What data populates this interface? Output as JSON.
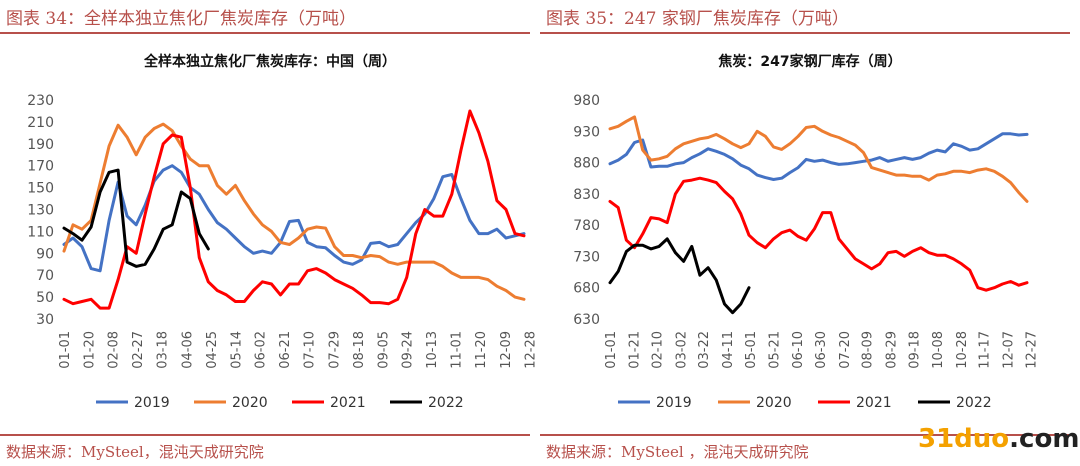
{
  "figures": [
    {
      "caption": "图表 34：全样本独立焦化厂焦炭库存（万吨）",
      "source": "数据来源：MySteel，混沌天成研究院"
    },
    {
      "caption": "图表 35：247 家钢厂焦炭库存（万吨）",
      "source": "数据来源：MySteel ，混沌天成研究院"
    }
  ],
  "watermark": {
    "part1": "31duo",
    "part2": ".com"
  },
  "chart_data": [
    {
      "type": "line",
      "title": "全样本独立焦化厂焦炭库存：中国（周）",
      "xlabel": "",
      "ylabel": "",
      "ylim": [
        30,
        230
      ],
      "yticks": [
        30,
        50,
        70,
        90,
        110,
        130,
        150,
        170,
        190,
        210,
        230
      ],
      "xlim": [
        1,
        52
      ],
      "categories": [
        "01-01",
        "01-20",
        "02-08",
        "02-27",
        "03-18",
        "04-06",
        "04-25",
        "05-14",
        "06-02",
        "06-21",
        "07-10",
        "07-29",
        "08-18",
        "09-05",
        "09-24",
        "10-13",
        "11-01",
        "11-20",
        "12-09",
        "12-28"
      ],
      "category_week": [
        1,
        3.7,
        6.4,
        9.1,
        11.8,
        14.6,
        17.3,
        20,
        22.7,
        25.4,
        28.1,
        30.9,
        33.6,
        36.3,
        39,
        41.7,
        44.4,
        47.1,
        49.9,
        52.6
      ],
      "grid": false,
      "legend_position": "bottom",
      "series": [
        {
          "name": "2019",
          "color": "#4472c4",
          "x": [
            1,
            2,
            3,
            4,
            5,
            6,
            7,
            8,
            9,
            10,
            11,
            12,
            13,
            14,
            15,
            16,
            17,
            18,
            19,
            20,
            21,
            22,
            23,
            24,
            25,
            26,
            27,
            28,
            29,
            30,
            31,
            32,
            33,
            34,
            35,
            36,
            37,
            38,
            39,
            40,
            41,
            42,
            43,
            44,
            45,
            46,
            47,
            48,
            49,
            50,
            51,
            52
          ],
          "values": [
            98,
            104,
            96,
            76,
            74,
            120,
            155,
            124,
            116,
            134,
            156,
            166,
            170,
            164,
            150,
            144,
            130,
            118,
            112,
            104,
            96,
            90,
            92,
            90,
            100,
            119,
            120,
            100,
            96,
            95,
            88,
            82,
            80,
            84,
            99,
            100,
            96,
            98,
            108,
            118,
            126,
            140,
            160,
            162,
            140,
            120,
            108,
            108,
            112,
            104,
            106,
            108
          ]
        },
        {
          "name": "2020",
          "color": "#ed7d31",
          "x": [
            1,
            2,
            3,
            4,
            5,
            6,
            7,
            8,
            9,
            10,
            11,
            12,
            13,
            14,
            15,
            16,
            17,
            18,
            19,
            20,
            21,
            22,
            23,
            24,
            25,
            26,
            27,
            28,
            29,
            30,
            31,
            32,
            33,
            34,
            35,
            36,
            37,
            38,
            39,
            40,
            41,
            42,
            43,
            44,
            45,
            46,
            47,
            48,
            49,
            50,
            51,
            52
          ],
          "values": [
            92,
            116,
            112,
            120,
            154,
            188,
            207,
            196,
            180,
            196,
            204,
            208,
            202,
            188,
            176,
            170,
            170,
            152,
            144,
            152,
            138,
            126,
            116,
            110,
            100,
            98,
            104,
            112,
            114,
            113,
            96,
            88,
            88,
            86,
            88,
            87,
            82,
            80,
            82,
            82,
            82,
            82,
            78,
            72,
            68,
            68,
            68,
            66,
            60,
            56,
            50,
            48
          ]
        },
        {
          "name": "2021",
          "color": "#ff0000",
          "x": [
            1,
            2,
            3,
            4,
            5,
            6,
            7,
            8,
            9,
            10,
            11,
            12,
            13,
            14,
            15,
            16,
            17,
            18,
            19,
            20,
            21,
            22,
            23,
            24,
            25,
            26,
            27,
            28,
            29,
            30,
            31,
            32,
            33,
            34,
            35,
            36,
            37,
            38,
            39,
            40,
            41,
            42,
            43,
            44,
            45,
            46,
            47,
            48,
            49,
            50,
            51,
            52
          ],
          "values": [
            48,
            44,
            46,
            48,
            40,
            40,
            66,
            96,
            90,
            126,
            160,
            190,
            198,
            196,
            150,
            86,
            64,
            56,
            52,
            46,
            46,
            56,
            64,
            62,
            52,
            62,
            62,
            74,
            76,
            72,
            66,
            62,
            58,
            52,
            45,
            45,
            44,
            48,
            68,
            108,
            130,
            124,
            124,
            144,
            184,
            220,
            200,
            174,
            138,
            130,
            108,
            106
          ]
        },
        {
          "name": "2022",
          "color": "#000000",
          "x": [
            1,
            2,
            3,
            4,
            5,
            6,
            7,
            8,
            9,
            10,
            11,
            12,
            13,
            14,
            15,
            16,
            17,
            18,
            19
          ],
          "values": [
            113,
            108,
            102,
            114,
            146,
            164,
            166,
            82,
            78,
            80,
            94,
            112,
            116,
            146,
            140,
            108,
            94,
            null,
            null
          ]
        }
      ]
    },
    {
      "type": "line",
      "title": "焦炭：247家钢厂库存（周）",
      "xlabel": "",
      "ylabel": "",
      "ylim": [
        630,
        980
      ],
      "yticks": [
        630,
        680,
        730,
        780,
        830,
        880,
        930,
        980
      ],
      "xlim": [
        1,
        52
      ],
      "categories": [
        "01-01",
        "01-21",
        "02-10",
        "03-02",
        "03-22",
        "04-11",
        "05-01",
        "05-21",
        "06-10",
        "06-30",
        "07-20",
        "08-09",
        "08-29",
        "09-18",
        "10-08",
        "10-28",
        "11-17",
        "12-07",
        "12-27"
      ],
      "category_week": [
        1,
        3.9,
        6.7,
        9.6,
        12.4,
        15.3,
        18.1,
        21,
        23.9,
        26.7,
        29.6,
        32.4,
        35.3,
        38.1,
        41,
        43.9,
        46.7,
        49.6,
        52.4
      ],
      "grid": false,
      "legend_position": "bottom",
      "series": [
        {
          "name": "2019",
          "color": "#4472c4",
          "x": [
            1,
            2,
            3,
            4,
            5,
            6,
            7,
            8,
            9,
            10,
            11,
            12,
            13,
            14,
            15,
            16,
            17,
            18,
            19,
            20,
            21,
            22,
            23,
            24,
            25,
            26,
            27,
            28,
            29,
            30,
            31,
            32,
            33,
            34,
            35,
            36,
            37,
            38,
            39,
            40,
            41,
            42,
            43,
            44,
            45,
            46,
            47,
            48,
            49,
            50,
            51,
            52
          ],
          "values": [
            878,
            884,
            893,
            912,
            916,
            873,
            874,
            874,
            878,
            880,
            888,
            894,
            902,
            898,
            893,
            886,
            876,
            870,
            860,
            856,
            853,
            855,
            864,
            872,
            885,
            882,
            884,
            880,
            877,
            878,
            880,
            882,
            884,
            888,
            882,
            885,
            888,
            885,
            888,
            895,
            900,
            897,
            910,
            906,
            900,
            902,
            910,
            918,
            926,
            926,
            924,
            925
          ]
        },
        {
          "name": "2020",
          "color": "#ed7d31",
          "x": [
            1,
            2,
            3,
            4,
            5,
            6,
            7,
            8,
            9,
            10,
            11,
            12,
            13,
            14,
            15,
            16,
            17,
            18,
            19,
            20,
            21,
            22,
            23,
            24,
            25,
            26,
            27,
            28,
            29,
            30,
            31,
            32,
            33,
            34,
            35,
            36,
            37,
            38,
            39,
            40,
            41,
            42,
            43,
            44,
            45,
            46,
            47,
            48,
            49,
            50,
            51,
            52
          ],
          "values": [
            934,
            938,
            946,
            953,
            900,
            884,
            886,
            890,
            902,
            910,
            914,
            918,
            920,
            925,
            918,
            910,
            904,
            910,
            930,
            922,
            905,
            901,
            910,
            922,
            936,
            938,
            930,
            924,
            920,
            914,
            908,
            896,
            872,
            868,
            864,
            860,
            860,
            858,
            858,
            852,
            860,
            862,
            866,
            866,
            864,
            868,
            870,
            866,
            858,
            848,
            832,
            818
          ]
        },
        {
          "name": "2021",
          "color": "#ff0000",
          "x": [
            1,
            2,
            3,
            4,
            5,
            6,
            7,
            8,
            9,
            10,
            11,
            12,
            13,
            14,
            15,
            16,
            17,
            18,
            19,
            20,
            21,
            22,
            23,
            24,
            25,
            26,
            27,
            28,
            29,
            30,
            31,
            32,
            33,
            34,
            35,
            36,
            37,
            38,
            39,
            40,
            41,
            42,
            43,
            44,
            45,
            46,
            47,
            48,
            49,
            50,
            51,
            52
          ],
          "values": [
            818,
            808,
            756,
            744,
            766,
            792,
            790,
            784,
            830,
            850,
            852,
            855,
            852,
            848,
            834,
            822,
            798,
            764,
            752,
            744,
            758,
            768,
            772,
            762,
            756,
            774,
            800,
            800,
            758,
            742,
            726,
            718,
            710,
            718,
            736,
            738,
            730,
            738,
            744,
            736,
            732,
            732,
            726,
            718,
            708,
            680,
            676,
            680,
            686,
            690,
            684,
            688
          ]
        },
        {
          "name": "2022",
          "color": "#000000",
          "x": [
            1,
            2,
            3,
            4,
            5,
            6,
            7,
            8,
            9,
            10,
            11,
            12,
            13,
            14,
            15,
            16,
            17,
            18,
            19
          ],
          "values": [
            688,
            706,
            738,
            748,
            748,
            742,
            746,
            758,
            736,
            722,
            746,
            700,
            712,
            692,
            654,
            640,
            654,
            680,
            null
          ]
        }
      ]
    }
  ]
}
